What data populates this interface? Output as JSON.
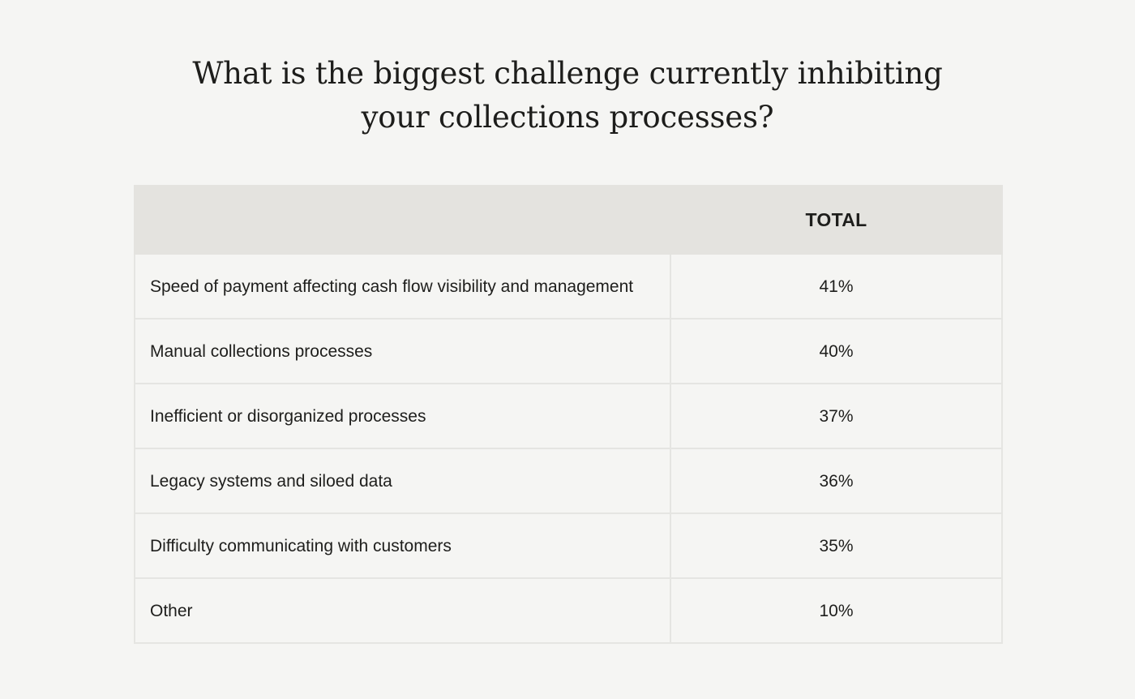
{
  "title_lines": [
    "What is the biggest challenge currently inhibiting",
    "your collections processes?"
  ],
  "chart_data": {
    "type": "table",
    "title": "What is the biggest challenge currently inhibiting your collections processes?",
    "columns": [
      "",
      "TOTAL"
    ],
    "rows": [
      {
        "label": "Speed of payment affecting cash flow visibility and management",
        "value": "41%"
      },
      {
        "label": "Manual collections processes",
        "value": "40%"
      },
      {
        "label": "Inefficient or disorganized processes",
        "value": "37%"
      },
      {
        "label": "Legacy systems and siloed data",
        "value": "36%"
      },
      {
        "label": "Difficulty communicating with customers",
        "value": "35%"
      },
      {
        "label": "Other",
        "value": "10%"
      }
    ]
  },
  "colors": {
    "background": "#f5f5f3",
    "header_fill": "#e4e3df",
    "grid_line": "#e5e5e2",
    "text": "#1e1e1c"
  }
}
